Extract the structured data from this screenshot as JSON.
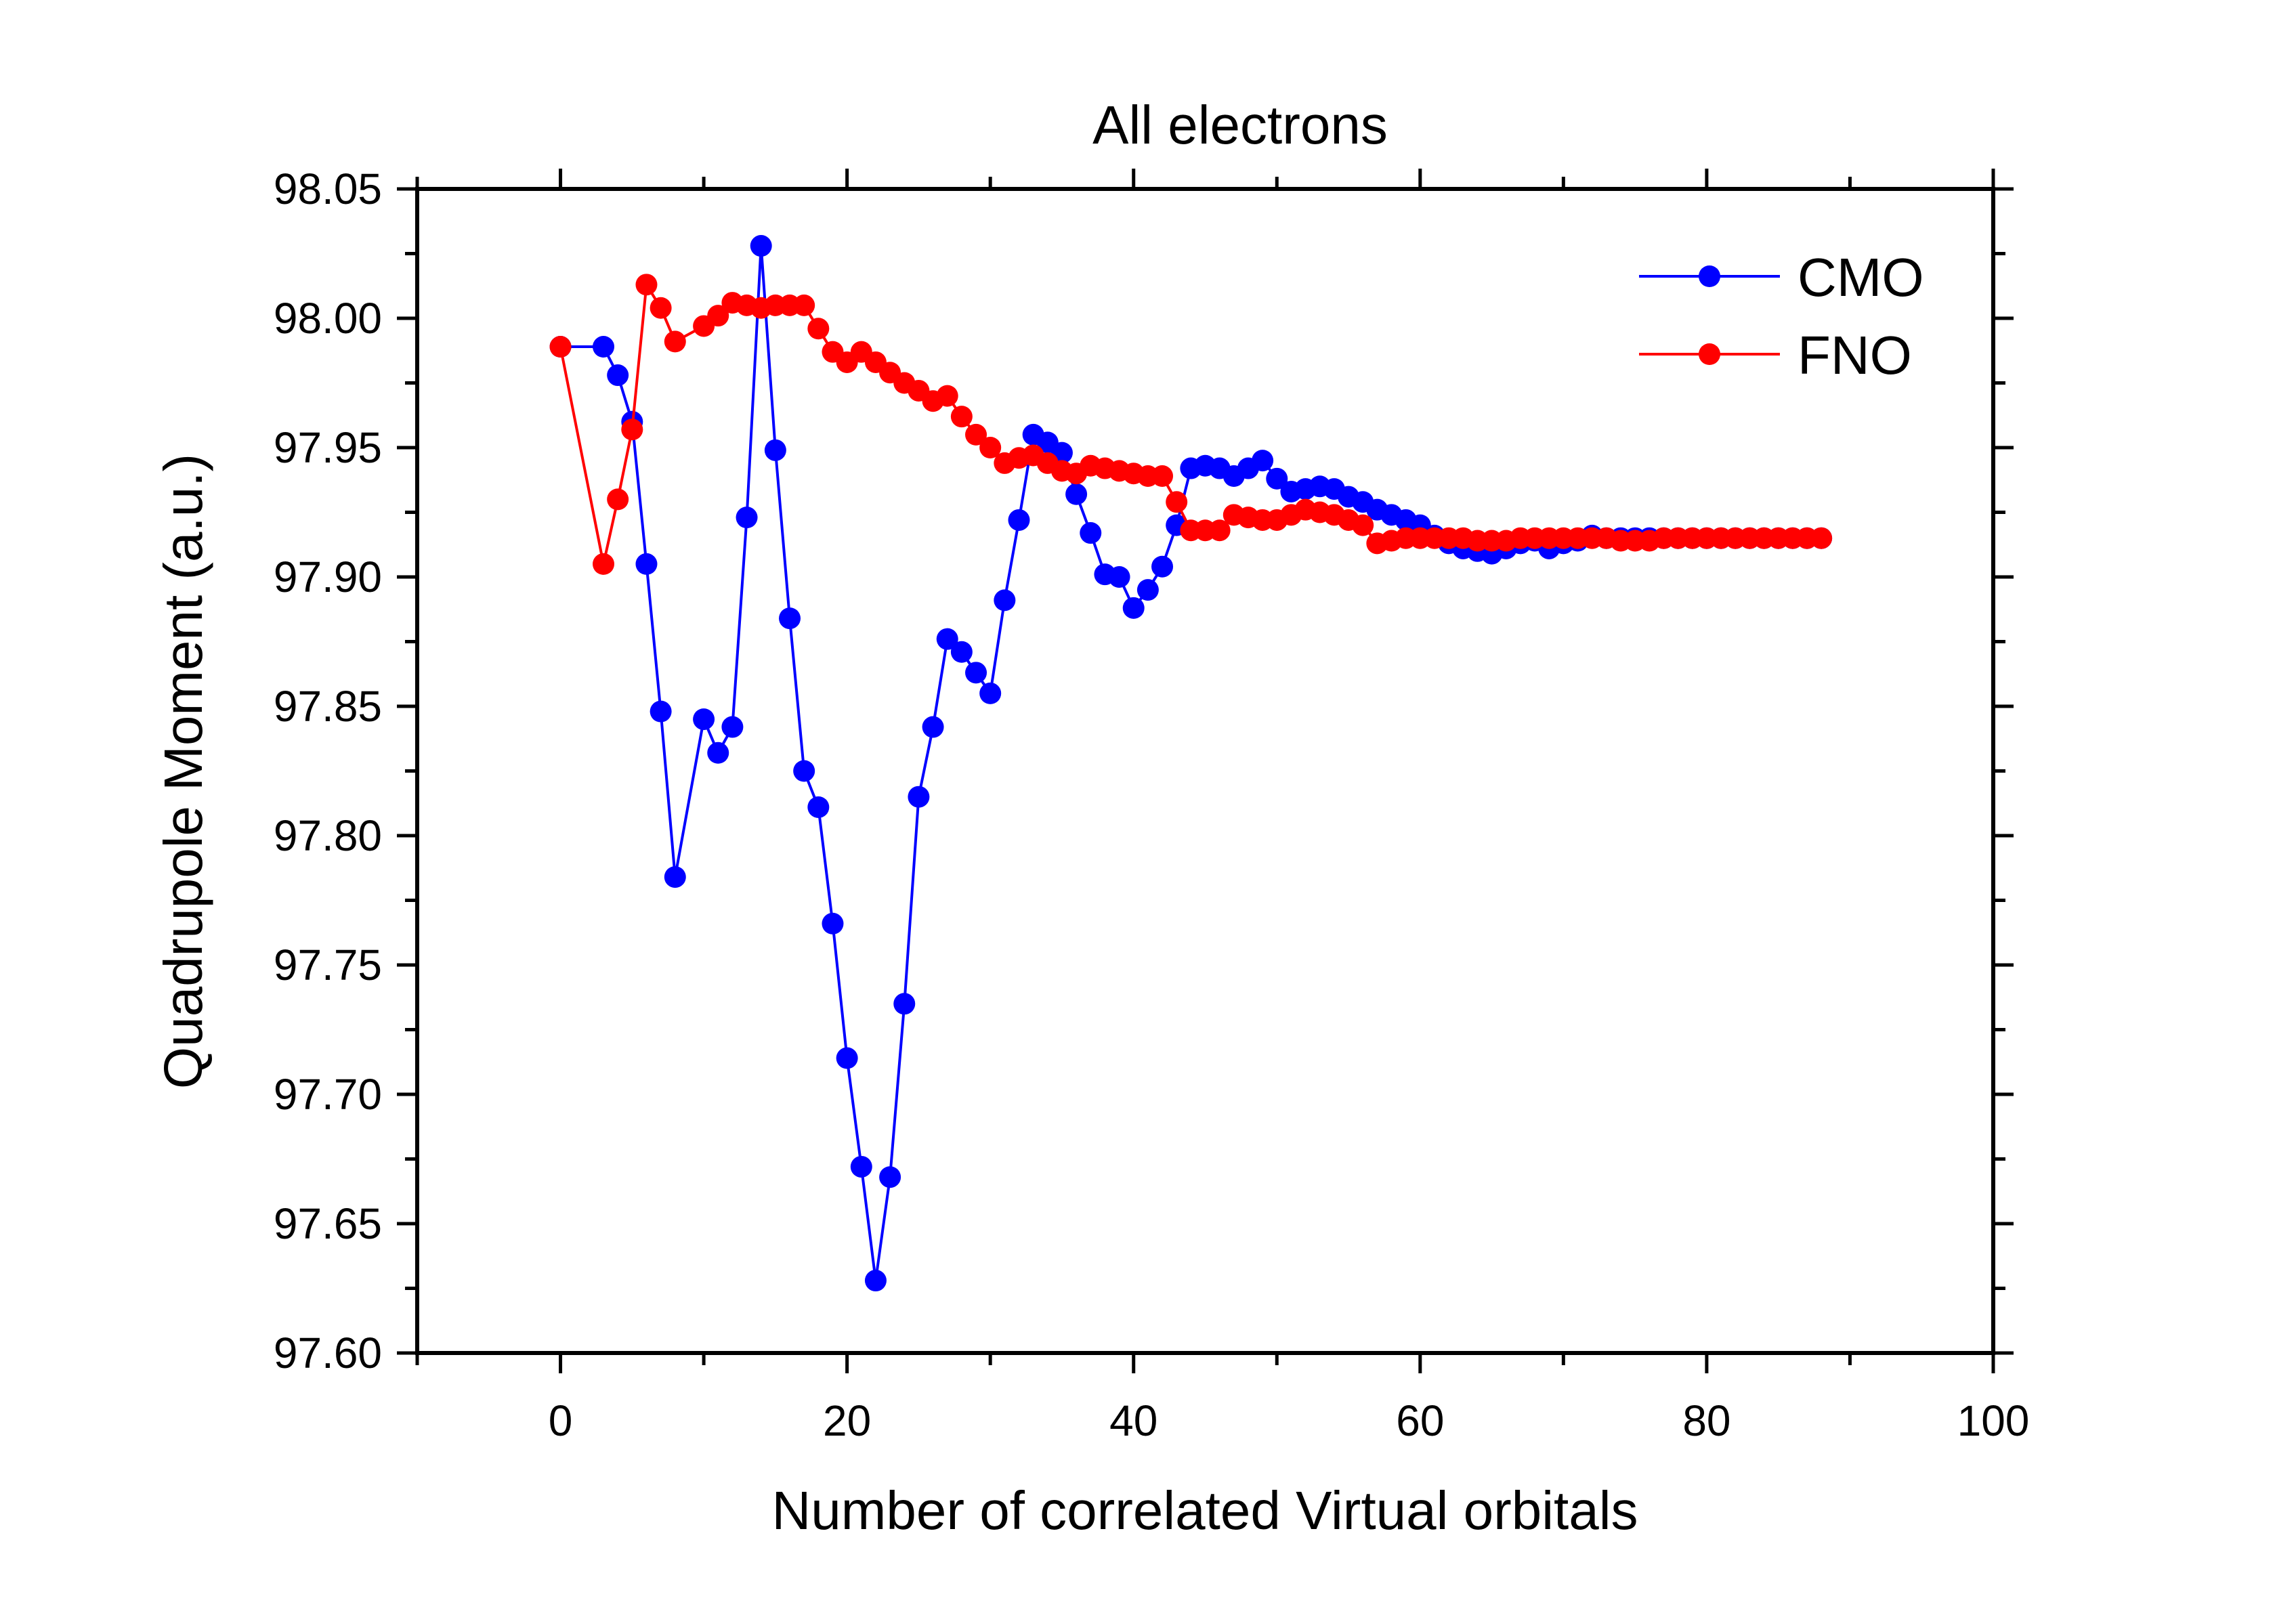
{
  "chart_data": {
    "type": "line",
    "title": "All electrons",
    "xlabel": "Number of correlated Virtual orbitals",
    "ylabel": "Quadrupole Moment (a.u.)",
    "xlim": [
      -10,
      100
    ],
    "ylim": [
      97.6,
      98.05
    ],
    "x_ticks": [
      0,
      20,
      40,
      60,
      80,
      100
    ],
    "y_ticks": [
      97.6,
      97.65,
      97.7,
      97.75,
      97.8,
      97.85,
      97.9,
      97.95,
      98.0,
      98.05
    ],
    "x_tick_labels": [
      "0",
      "20",
      "40",
      "60",
      "80",
      "100"
    ],
    "y_tick_labels": [
      "97.60",
      "97.65",
      "97.70",
      "97.75",
      "97.80",
      "97.85",
      "97.90",
      "97.95",
      "98.00",
      "98.05"
    ],
    "grid": false,
    "legend_position": "top-right",
    "series": [
      {
        "name": "CMO",
        "color": "#0000ff",
        "x": [
          0,
          3,
          4,
          5,
          6,
          7,
          8,
          10,
          11,
          12,
          13,
          14,
          15,
          16,
          17,
          18,
          19,
          20,
          21,
          22,
          23,
          24,
          25,
          26,
          27,
          28,
          29,
          30,
          31,
          32,
          33,
          34,
          35,
          36,
          37,
          38,
          39,
          40,
          41,
          42,
          43,
          44,
          45,
          46,
          47,
          48,
          49,
          50,
          51,
          52,
          53,
          54,
          55,
          56,
          57,
          58,
          59,
          60,
          61,
          62,
          63,
          64,
          65,
          66,
          67,
          68,
          69,
          70,
          71,
          72,
          73,
          74,
          75,
          76,
          77,
          78,
          79,
          80,
          81,
          82,
          83,
          84,
          85,
          86,
          87,
          88
        ],
        "values": [
          97.989,
          97.989,
          97.978,
          97.96,
          97.905,
          97.848,
          97.784,
          97.845,
          97.832,
          97.842,
          97.923,
          98.028,
          97.949,
          97.884,
          97.825,
          97.811,
          97.766,
          97.714,
          97.672,
          97.628,
          97.668,
          97.735,
          97.815,
          97.842,
          97.876,
          97.871,
          97.863,
          97.855,
          97.891,
          97.922,
          97.955,
          97.952,
          97.948,
          97.932,
          97.917,
          97.901,
          97.9,
          97.888,
          97.895,
          97.904,
          97.92,
          97.942,
          97.943,
          97.942,
          97.939,
          97.942,
          97.945,
          97.938,
          97.933,
          97.934,
          97.935,
          97.934,
          97.931,
          97.929,
          97.926,
          97.924,
          97.922,
          97.92,
          97.916,
          97.913,
          97.911,
          97.91,
          97.909,
          97.911,
          97.913,
          97.914,
          97.911,
          97.913,
          97.914,
          97.916,
          97.915,
          97.915,
          97.915,
          97.915,
          97.915,
          97.915,
          97.915,
          97.915,
          97.915,
          97.915,
          97.915,
          97.915,
          97.915,
          97.915,
          97.915,
          97.915
        ]
      },
      {
        "name": "FNO",
        "color": "#ff0000",
        "x": [
          0,
          3,
          4,
          5,
          6,
          7,
          8,
          10,
          11,
          12,
          13,
          14,
          15,
          16,
          17,
          18,
          19,
          20,
          21,
          22,
          23,
          24,
          25,
          26,
          27,
          28,
          29,
          30,
          31,
          32,
          33,
          34,
          35,
          36,
          37,
          38,
          39,
          40,
          41,
          42,
          43,
          44,
          45,
          46,
          47,
          48,
          49,
          50,
          51,
          52,
          53,
          54,
          55,
          56,
          57,
          58,
          59,
          60,
          61,
          62,
          63,
          64,
          65,
          66,
          67,
          68,
          69,
          70,
          71,
          72,
          73,
          74,
          75,
          76,
          77,
          78,
          79,
          80,
          81,
          82,
          83,
          84,
          85,
          86,
          87,
          88
        ],
        "values": [
          97.989,
          97.905,
          97.93,
          97.957,
          98.013,
          98.004,
          97.991,
          97.997,
          98.001,
          98.006,
          98.005,
          98.004,
          98.005,
          98.005,
          98.005,
          97.996,
          97.987,
          97.983,
          97.987,
          97.983,
          97.979,
          97.975,
          97.972,
          97.968,
          97.97,
          97.962,
          97.955,
          97.95,
          97.944,
          97.946,
          97.947,
          97.944,
          97.941,
          97.94,
          97.943,
          97.942,
          97.941,
          97.94,
          97.939,
          97.939,
          97.929,
          97.918,
          97.918,
          97.918,
          97.924,
          97.923,
          97.922,
          97.922,
          97.924,
          97.926,
          97.925,
          97.924,
          97.922,
          97.92,
          97.913,
          97.914,
          97.915,
          97.915,
          97.915,
          97.915,
          97.915,
          97.914,
          97.914,
          97.914,
          97.915,
          97.915,
          97.915,
          97.915,
          97.915,
          97.915,
          97.915,
          97.914,
          97.914,
          97.914,
          97.915,
          97.915,
          97.915,
          97.915,
          97.915,
          97.915,
          97.915,
          97.915,
          97.915,
          97.915,
          97.915,
          97.915
        ]
      }
    ]
  }
}
